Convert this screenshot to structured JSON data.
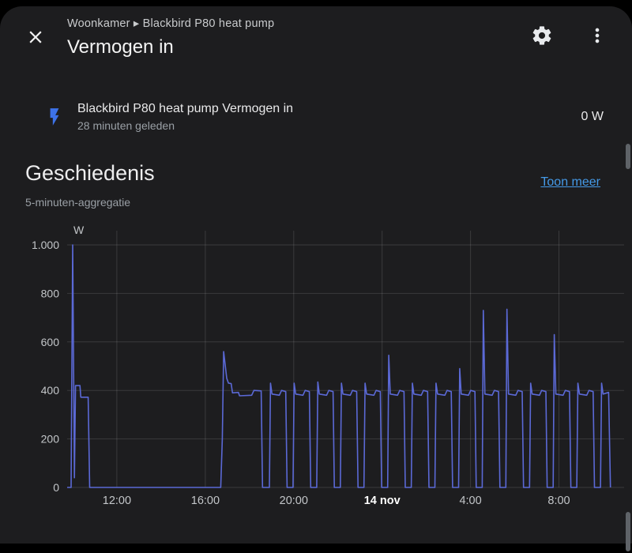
{
  "header": {
    "breadcrumb": "Woonkamer ▸ Blackbird P80 heat pump",
    "title": "Vermogen in"
  },
  "entity": {
    "icon": "flash-icon",
    "icon_color": "#3d72e8",
    "name": "Blackbird P80 heat pump Vermogen in",
    "last_changed": "28 minuten geleden",
    "state": "0 W"
  },
  "history": {
    "title": "Geschiedenis",
    "link_label": "Toon meer",
    "subtitle": "5-minuten-aggregatie"
  },
  "chart_data": {
    "type": "line",
    "title": "Geschiedenis (5-minuten-aggregatie)",
    "unit": "W",
    "ylabel": "W",
    "xlabel": "",
    "ylim": [
      0,
      1000
    ],
    "grid": true,
    "legend_position": "none",
    "line_color": "#5b69d6",
    "x_range_hours": [
      0,
      25.2
    ],
    "yticks": [
      {
        "v": 0,
        "label": "0"
      },
      {
        "v": 200,
        "label": "200"
      },
      {
        "v": 400,
        "label": "400"
      },
      {
        "v": 600,
        "label": "600"
      },
      {
        "v": 800,
        "label": "800"
      },
      {
        "v": 1000,
        "label": "1.000"
      }
    ],
    "xticks": [
      {
        "t": 2.25,
        "label": "12:00",
        "bold": false
      },
      {
        "t": 6.25,
        "label": "16:00",
        "bold": false
      },
      {
        "t": 10.25,
        "label": "20:00",
        "bold": false
      },
      {
        "t": 14.25,
        "label": "14 nov",
        "bold": true
      },
      {
        "t": 18.25,
        "label": "4:00",
        "bold": false
      },
      {
        "t": 22.25,
        "label": "8:00",
        "bold": false
      }
    ],
    "series": [
      {
        "name": "Blackbird P80 heat pump Vermogen in",
        "points": [
          [
            0.0,
            0
          ],
          [
            0.18,
            0
          ],
          [
            0.25,
            1000
          ],
          [
            0.33,
            40
          ],
          [
            0.38,
            420
          ],
          [
            0.58,
            420
          ],
          [
            0.62,
            372
          ],
          [
            0.95,
            372
          ],
          [
            1.02,
            0
          ],
          [
            6.95,
            0
          ],
          [
            7.02,
            200
          ],
          [
            7.08,
            560
          ],
          [
            7.22,
            450
          ],
          [
            7.3,
            430
          ],
          [
            7.42,
            428
          ],
          [
            7.48,
            390
          ],
          [
            7.75,
            392
          ],
          [
            7.8,
            378
          ],
          [
            8.35,
            380
          ],
          [
            8.45,
            400
          ],
          [
            8.78,
            398
          ],
          [
            8.84,
            0
          ],
          [
            9.15,
            0
          ],
          [
            9.2,
            430
          ],
          [
            9.27,
            385
          ],
          [
            9.6,
            380
          ],
          [
            9.7,
            400
          ],
          [
            9.89,
            395
          ],
          [
            9.95,
            0
          ],
          [
            10.22,
            0
          ],
          [
            10.27,
            430
          ],
          [
            10.34,
            385
          ],
          [
            10.67,
            380
          ],
          [
            10.77,
            400
          ],
          [
            10.96,
            395
          ],
          [
            11.02,
            0
          ],
          [
            11.29,
            0
          ],
          [
            11.34,
            435
          ],
          [
            11.41,
            385
          ],
          [
            11.74,
            380
          ],
          [
            11.84,
            400
          ],
          [
            12.03,
            395
          ],
          [
            12.09,
            0
          ],
          [
            12.36,
            0
          ],
          [
            12.41,
            430
          ],
          [
            12.48,
            385
          ],
          [
            12.81,
            380
          ],
          [
            12.91,
            400
          ],
          [
            13.1,
            395
          ],
          [
            13.16,
            0
          ],
          [
            13.43,
            0
          ],
          [
            13.48,
            430
          ],
          [
            13.55,
            385
          ],
          [
            13.88,
            380
          ],
          [
            13.98,
            400
          ],
          [
            14.17,
            395
          ],
          [
            14.23,
            0
          ],
          [
            14.5,
            0
          ],
          [
            14.55,
            545
          ],
          [
            14.62,
            385
          ],
          [
            14.95,
            380
          ],
          [
            15.05,
            400
          ],
          [
            15.24,
            395
          ],
          [
            15.3,
            0
          ],
          [
            15.57,
            0
          ],
          [
            15.62,
            430
          ],
          [
            15.69,
            385
          ],
          [
            16.02,
            380
          ],
          [
            16.12,
            400
          ],
          [
            16.31,
            395
          ],
          [
            16.37,
            0
          ],
          [
            16.64,
            0
          ],
          [
            16.69,
            430
          ],
          [
            16.76,
            385
          ],
          [
            17.09,
            380
          ],
          [
            17.19,
            400
          ],
          [
            17.38,
            395
          ],
          [
            17.44,
            0
          ],
          [
            17.71,
            0
          ],
          [
            17.76,
            490
          ],
          [
            17.83,
            385
          ],
          [
            18.16,
            380
          ],
          [
            18.26,
            400
          ],
          [
            18.45,
            395
          ],
          [
            18.51,
            0
          ],
          [
            18.78,
            0
          ],
          [
            18.83,
            730
          ],
          [
            18.9,
            385
          ],
          [
            19.23,
            380
          ],
          [
            19.33,
            400
          ],
          [
            19.52,
            395
          ],
          [
            19.58,
            0
          ],
          [
            19.85,
            0
          ],
          [
            19.9,
            735
          ],
          [
            19.97,
            385
          ],
          [
            20.3,
            380
          ],
          [
            20.4,
            400
          ],
          [
            20.59,
            395
          ],
          [
            20.65,
            0
          ],
          [
            20.92,
            0
          ],
          [
            20.97,
            430
          ],
          [
            21.04,
            385
          ],
          [
            21.37,
            380
          ],
          [
            21.47,
            400
          ],
          [
            21.66,
            395
          ],
          [
            21.72,
            0
          ],
          [
            21.99,
            0
          ],
          [
            22.04,
            630
          ],
          [
            22.11,
            385
          ],
          [
            22.44,
            380
          ],
          [
            22.54,
            400
          ],
          [
            22.73,
            395
          ],
          [
            22.79,
            0
          ],
          [
            23.06,
            0
          ],
          [
            23.11,
            430
          ],
          [
            23.18,
            385
          ],
          [
            23.51,
            380
          ],
          [
            23.61,
            400
          ],
          [
            23.8,
            395
          ],
          [
            23.86,
            0
          ],
          [
            24.13,
            0
          ],
          [
            24.18,
            430
          ],
          [
            24.25,
            385
          ],
          [
            24.5,
            392
          ],
          [
            24.58,
            0
          ]
        ]
      }
    ]
  }
}
